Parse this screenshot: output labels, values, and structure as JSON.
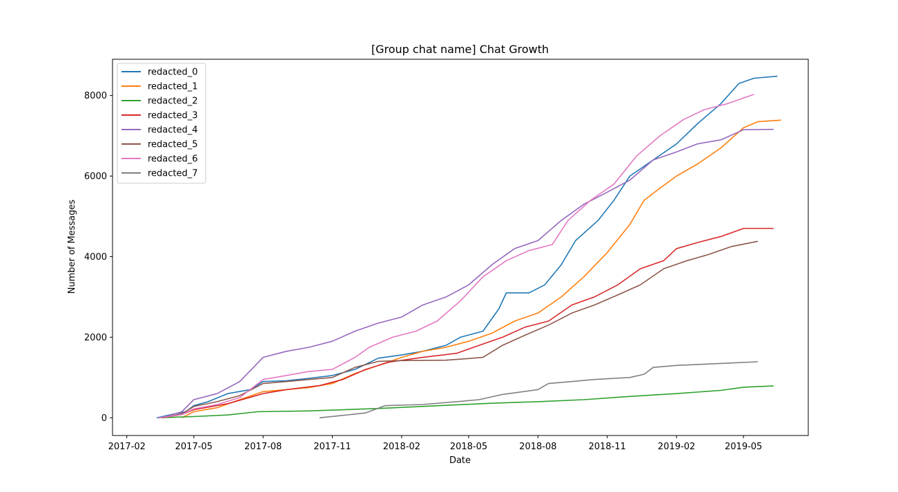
{
  "chart_data": {
    "type": "line",
    "title": "[Group chat name] Chat Growth",
    "xlabel": "Date",
    "ylabel": "Number of Messages",
    "x_ticks": [
      "2017-02",
      "2017-05",
      "2017-08",
      "2017-11",
      "2018-02",
      "2018-05",
      "2018-08",
      "2018-11",
      "2019-02",
      "2019-05"
    ],
    "y_ticks": [
      "0",
      "2000",
      "4000",
      "6000",
      "8000"
    ],
    "xlim": [
      "2017-01-13",
      "2019-07-26"
    ],
    "ylim": [
      -440,
      8900
    ],
    "grid": false,
    "legend_position": "upper-left",
    "series": [
      {
        "name": "redacted_0",
        "color": "#1f77b4",
        "points": [
          [
            "2017-03-13",
            0
          ],
          [
            "2017-04-01",
            80
          ],
          [
            "2017-04-20",
            150
          ],
          [
            "2017-05-01",
            300
          ],
          [
            "2017-05-20",
            400
          ],
          [
            "2017-06-15",
            600
          ],
          [
            "2017-07-15",
            700
          ],
          [
            "2017-08-01",
            900
          ],
          [
            "2017-09-01",
            920
          ],
          [
            "2017-10-01",
            980
          ],
          [
            "2017-11-01",
            1050
          ],
          [
            "2017-12-01",
            1200
          ],
          [
            "2018-01-01",
            1480
          ],
          [
            "2018-02-01",
            1560
          ],
          [
            "2018-03-01",
            1650
          ],
          [
            "2018-04-01",
            1800
          ],
          [
            "2018-04-20",
            2000
          ],
          [
            "2018-05-20",
            2150
          ],
          [
            "2018-06-10",
            2700
          ],
          [
            "2018-06-20",
            3100
          ],
          [
            "2018-07-20",
            3100
          ],
          [
            "2018-08-10",
            3300
          ],
          [
            "2018-09-01",
            3800
          ],
          [
            "2018-09-20",
            4400
          ],
          [
            "2018-10-20",
            4900
          ],
          [
            "2018-11-10",
            5400
          ],
          [
            "2018-12-01",
            6000
          ],
          [
            "2019-01-01",
            6400
          ],
          [
            "2019-02-01",
            6800
          ],
          [
            "2019-03-01",
            7300
          ],
          [
            "2019-04-01",
            7800
          ],
          [
            "2019-04-25",
            8300
          ],
          [
            "2019-05-15",
            8430
          ],
          [
            "2019-06-15",
            8480
          ]
        ]
      },
      {
        "name": "redacted_1",
        "color": "#ff7f0e",
        "points": [
          [
            "2017-04-15",
            0
          ],
          [
            "2017-05-01",
            150
          ],
          [
            "2017-06-01",
            250
          ],
          [
            "2017-07-01",
            450
          ],
          [
            "2017-08-01",
            650
          ],
          [
            "2017-09-01",
            700
          ],
          [
            "2017-10-01",
            750
          ],
          [
            "2017-11-01",
            850
          ],
          [
            "2017-12-01",
            1100
          ],
          [
            "2018-01-01",
            1300
          ],
          [
            "2018-02-01",
            1500
          ],
          [
            "2018-03-01",
            1650
          ],
          [
            "2018-04-01",
            1750
          ],
          [
            "2018-05-01",
            1900
          ],
          [
            "2018-06-01",
            2100
          ],
          [
            "2018-07-01",
            2400
          ],
          [
            "2018-08-01",
            2600
          ],
          [
            "2018-09-01",
            3000
          ],
          [
            "2018-10-01",
            3500
          ],
          [
            "2018-11-01",
            4100
          ],
          [
            "2018-12-01",
            4800
          ],
          [
            "2018-12-20",
            5400
          ],
          [
            "2019-01-10",
            5700
          ],
          [
            "2019-02-01",
            6000
          ],
          [
            "2019-03-01",
            6300
          ],
          [
            "2019-04-01",
            6700
          ],
          [
            "2019-05-01",
            7200
          ],
          [
            "2019-05-20",
            7350
          ],
          [
            "2019-06-20",
            7390
          ]
        ]
      },
      {
        "name": "redacted_2",
        "color": "#2ca02c",
        "points": [
          [
            "2017-03-15",
            0
          ],
          [
            "2017-05-01",
            30
          ],
          [
            "2017-06-15",
            70
          ],
          [
            "2017-07-25",
            150
          ],
          [
            "2017-10-01",
            170
          ],
          [
            "2018-01-01",
            230
          ],
          [
            "2018-04-01",
            310
          ],
          [
            "2018-06-01",
            360
          ],
          [
            "2018-08-01",
            400
          ],
          [
            "2018-10-01",
            450
          ],
          [
            "2018-12-01",
            530
          ],
          [
            "2019-02-01",
            600
          ],
          [
            "2019-04-01",
            680
          ],
          [
            "2019-05-01",
            760
          ],
          [
            "2019-06-10",
            790
          ]
        ]
      },
      {
        "name": "redacted_3",
        "color": "#d62728",
        "points": [
          [
            "2017-03-20",
            0
          ],
          [
            "2017-04-15",
            80
          ],
          [
            "2017-05-01",
            200
          ],
          [
            "2017-06-15",
            350
          ],
          [
            "2017-08-01",
            600
          ],
          [
            "2017-09-01",
            700
          ],
          [
            "2017-10-15",
            800
          ],
          [
            "2017-11-15",
            950
          ],
          [
            "2017-12-15",
            1200
          ],
          [
            "2018-01-15",
            1380
          ],
          [
            "2018-03-01",
            1500
          ],
          [
            "2018-04-15",
            1600
          ],
          [
            "2018-05-15",
            1800
          ],
          [
            "2018-06-15",
            2000
          ],
          [
            "2018-07-15",
            2250
          ],
          [
            "2018-08-15",
            2400
          ],
          [
            "2018-09-15",
            2800
          ],
          [
            "2018-10-15",
            3000
          ],
          [
            "2018-11-15",
            3300
          ],
          [
            "2018-12-15",
            3700
          ],
          [
            "2019-01-15",
            3900
          ],
          [
            "2019-02-01",
            4200
          ],
          [
            "2019-03-01",
            4350
          ],
          [
            "2019-04-01",
            4500
          ],
          [
            "2019-05-01",
            4700
          ],
          [
            "2019-06-10",
            4700
          ]
        ]
      },
      {
        "name": "redacted_4",
        "color": "#9467bd",
        "points": [
          [
            "2017-03-20",
            0
          ],
          [
            "2017-04-15",
            150
          ],
          [
            "2017-05-01",
            450
          ],
          [
            "2017-06-01",
            600
          ],
          [
            "2017-07-01",
            900
          ],
          [
            "2017-08-01",
            1500
          ],
          [
            "2017-09-01",
            1650
          ],
          [
            "2017-10-01",
            1750
          ],
          [
            "2017-11-01",
            1900
          ],
          [
            "2017-12-01",
            2150
          ],
          [
            "2018-01-01",
            2350
          ],
          [
            "2018-02-01",
            2500
          ],
          [
            "2018-03-01",
            2800
          ],
          [
            "2018-04-01",
            3000
          ],
          [
            "2018-05-01",
            3300
          ],
          [
            "2018-06-01",
            3800
          ],
          [
            "2018-07-01",
            4200
          ],
          [
            "2018-08-01",
            4400
          ],
          [
            "2018-09-01",
            4900
          ],
          [
            "2018-10-01",
            5300
          ],
          [
            "2018-11-01",
            5600
          ],
          [
            "2018-12-01",
            5900
          ],
          [
            "2019-01-01",
            6400
          ],
          [
            "2019-02-01",
            6600
          ],
          [
            "2019-03-01",
            6800
          ],
          [
            "2019-04-01",
            6900
          ],
          [
            "2019-05-01",
            7150
          ],
          [
            "2019-06-10",
            7160
          ]
        ]
      },
      {
        "name": "redacted_5",
        "color": "#8c564b",
        "points": [
          [
            "2017-03-20",
            0
          ],
          [
            "2017-04-15",
            100
          ],
          [
            "2017-05-01",
            280
          ],
          [
            "2017-06-01",
            400
          ],
          [
            "2017-07-01",
            550
          ],
          [
            "2017-08-01",
            850
          ],
          [
            "2017-09-01",
            900
          ],
          [
            "2017-10-01",
            950
          ],
          [
            "2017-11-01",
            1000
          ],
          [
            "2017-12-01",
            1250
          ],
          [
            "2018-01-01",
            1400
          ],
          [
            "2018-02-01",
            1420
          ],
          [
            "2018-04-01",
            1430
          ],
          [
            "2018-05-01",
            1470
          ],
          [
            "2018-05-20",
            1500
          ],
          [
            "2018-06-15",
            1800
          ],
          [
            "2018-07-15",
            2050
          ],
          [
            "2018-08-15",
            2300
          ],
          [
            "2018-09-15",
            2600
          ],
          [
            "2018-10-15",
            2800
          ],
          [
            "2018-11-15",
            3050
          ],
          [
            "2018-12-15",
            3300
          ],
          [
            "2019-01-15",
            3700
          ],
          [
            "2019-02-15",
            3900
          ],
          [
            "2019-03-15",
            4050
          ],
          [
            "2019-04-15",
            4250
          ],
          [
            "2019-05-20",
            4380
          ]
        ]
      },
      {
        "name": "redacted_6",
        "color": "#e377c2",
        "points": [
          [
            "2017-03-15",
            0
          ],
          [
            "2017-04-15",
            80
          ],
          [
            "2017-05-01",
            220
          ],
          [
            "2017-06-01",
            330
          ],
          [
            "2017-07-01",
            500
          ],
          [
            "2017-08-01",
            950
          ],
          [
            "2017-09-01",
            1050
          ],
          [
            "2017-10-01",
            1150
          ],
          [
            "2017-11-01",
            1200
          ],
          [
            "2017-12-01",
            1500
          ],
          [
            "2017-12-20",
            1750
          ],
          [
            "2018-01-20",
            2000
          ],
          [
            "2018-02-20",
            2150
          ],
          [
            "2018-03-20",
            2400
          ],
          [
            "2018-04-20",
            2900
          ],
          [
            "2018-05-20",
            3500
          ],
          [
            "2018-06-20",
            3900
          ],
          [
            "2018-07-20",
            4150
          ],
          [
            "2018-08-20",
            4300
          ],
          [
            "2018-09-10",
            4900
          ],
          [
            "2018-10-10",
            5400
          ],
          [
            "2018-11-10",
            5800
          ],
          [
            "2018-12-10",
            6500
          ],
          [
            "2019-01-10",
            7000
          ],
          [
            "2019-02-10",
            7400
          ],
          [
            "2019-03-10",
            7650
          ],
          [
            "2019-04-10",
            7800
          ],
          [
            "2019-05-15",
            8030
          ]
        ]
      },
      {
        "name": "redacted_7",
        "color": "#7f7f7f",
        "points": [
          [
            "2017-10-15",
            0
          ],
          [
            "2017-11-15",
            60
          ],
          [
            "2017-12-15",
            120
          ],
          [
            "2018-01-10",
            300
          ],
          [
            "2018-03-01",
            330
          ],
          [
            "2018-04-15",
            400
          ],
          [
            "2018-05-15",
            450
          ],
          [
            "2018-06-15",
            580
          ],
          [
            "2018-08-01",
            700
          ],
          [
            "2018-08-15",
            850
          ],
          [
            "2018-09-15",
            900
          ],
          [
            "2018-10-15",
            950
          ],
          [
            "2018-12-01",
            1000
          ],
          [
            "2018-12-20",
            1080
          ],
          [
            "2019-01-01",
            1250
          ],
          [
            "2019-02-01",
            1300
          ],
          [
            "2019-04-01",
            1350
          ],
          [
            "2019-05-20",
            1390
          ]
        ]
      }
    ]
  }
}
